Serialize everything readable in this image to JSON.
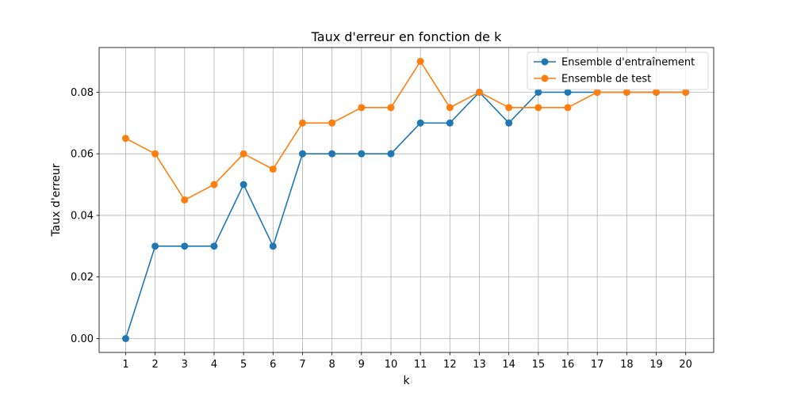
{
  "chart_data": {
    "type": "line",
    "title": "Taux d'erreur en fonction de k",
    "xlabel": "k",
    "ylabel": "Taux d'erreur",
    "x": [
      1,
      2,
      3,
      4,
      5,
      6,
      7,
      8,
      9,
      10,
      11,
      12,
      13,
      14,
      15,
      16,
      17,
      18,
      19,
      20
    ],
    "xlim": [
      0.1,
      20.95
    ],
    "ylim": [
      -0.0045,
      0.0945
    ],
    "yticks": [
      0.0,
      0.02,
      0.04,
      0.06,
      0.08
    ],
    "ytick_labels": [
      "0.00",
      "0.02",
      "0.04",
      "0.06",
      "0.08"
    ],
    "grid": true,
    "legend_position": "top-right",
    "series": [
      {
        "name": "Ensemble d'entraînement",
        "color": "#1f77b4",
        "values": [
          0.0,
          0.03,
          0.03,
          0.03,
          0.05,
          0.03,
          0.06,
          0.06,
          0.06,
          0.06,
          0.07,
          0.07,
          0.08,
          0.07,
          0.08,
          0.08,
          0.08,
          0.08,
          0.08,
          0.08
        ]
      },
      {
        "name": "Ensemble de test",
        "color": "#ff7f0e",
        "values": [
          0.065,
          0.06,
          0.045,
          0.05,
          0.06,
          0.055,
          0.07,
          0.07,
          0.075,
          0.075,
          0.09,
          0.075,
          0.08,
          0.075,
          0.075,
          0.075,
          0.08,
          0.08,
          0.08,
          0.08
        ]
      }
    ]
  }
}
